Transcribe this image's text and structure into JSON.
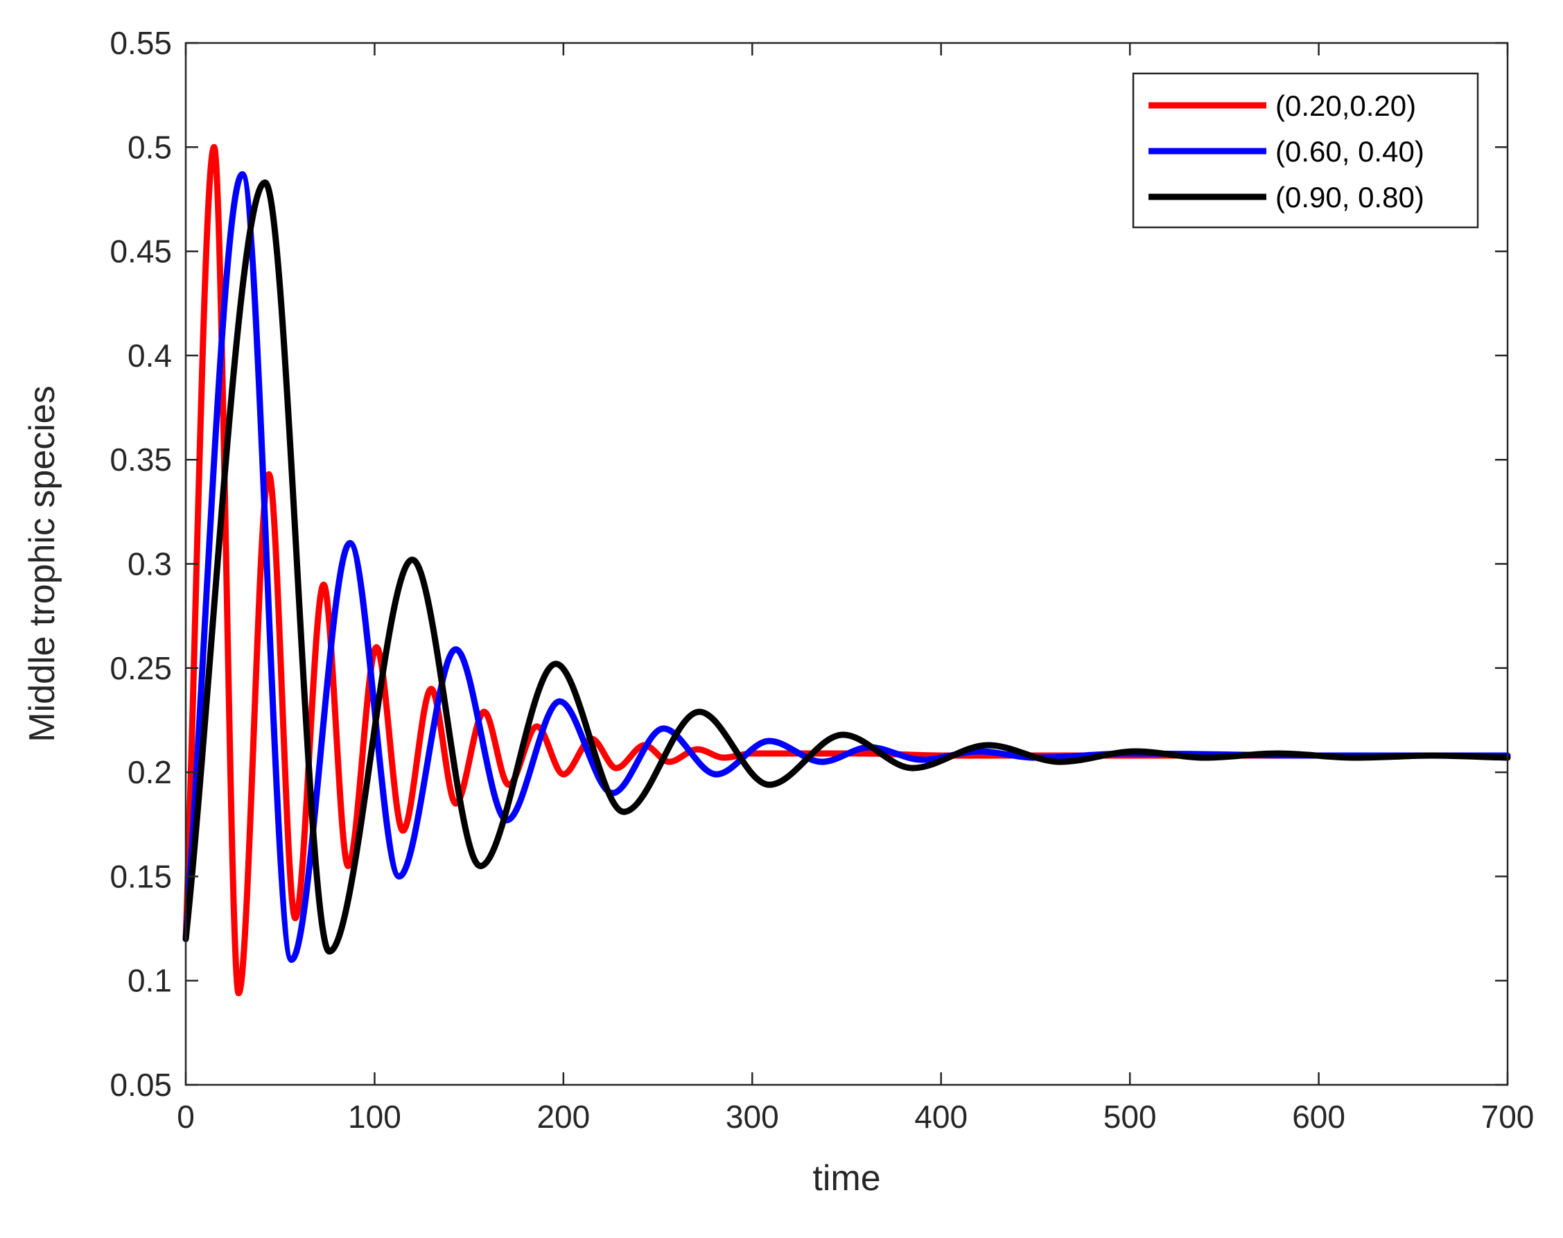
{
  "chart_data": {
    "type": "line",
    "title": "",
    "xlabel": "time",
    "ylabel": "Middle trophic species",
    "xlim": [
      0,
      700
    ],
    "ylim": [
      0.05,
      0.55
    ],
    "xticks": [
      0,
      100,
      200,
      300,
      400,
      500,
      600,
      700
    ],
    "xtick_labels": [
      "0",
      "100",
      "200",
      "300",
      "400",
      "500",
      "600",
      "700"
    ],
    "yticks": [
      0.05,
      0.1,
      0.15,
      0.2,
      0.25,
      0.3,
      0.35,
      0.4,
      0.45,
      0.5,
      0.55
    ],
    "ytick_labels": [
      "0.05",
      "0.1",
      "0.15",
      "0.2",
      "0.25",
      "0.3",
      "0.35",
      "0.4",
      "0.45",
      "0.5",
      "0.55"
    ],
    "grid": false,
    "legend_position": "top-right",
    "series": [
      {
        "name": "(0.20,0.20)",
        "color": "#ff0000",
        "x": [
          0,
          15,
          28,
          44,
          58,
          73,
          86,
          101,
          115,
          130,
          143,
          158,
          171,
          186,
          200,
          215,
          228,
          243,
          256,
          271,
          285,
          300,
          330,
          360,
          400,
          500,
          600,
          700
        ],
        "y": [
          0.12,
          0.5,
          0.094,
          0.343,
          0.13,
          0.29,
          0.155,
          0.26,
          0.172,
          0.24,
          0.185,
          0.229,
          0.194,
          0.222,
          0.199,
          0.216,
          0.202,
          0.213,
          0.205,
          0.211,
          0.207,
          0.209,
          0.209,
          0.209,
          0.208,
          0.208,
          0.208,
          0.208
        ]
      },
      {
        "name": "(0.60, 0.40)",
        "color": "#0000ff",
        "x": [
          0,
          30,
          56,
          87,
          113,
          143,
          170,
          198,
          226,
          253,
          281,
          309,
          337,
          362,
          390,
          420,
          450,
          500,
          600,
          700
        ],
        "y": [
          0.12,
          0.487,
          0.11,
          0.31,
          0.15,
          0.259,
          0.177,
          0.234,
          0.19,
          0.221,
          0.199,
          0.215,
          0.205,
          0.212,
          0.206,
          0.21,
          0.207,
          0.209,
          0.208,
          0.208
        ]
      },
      {
        "name": "(0.90, 0.80)",
        "color": "#000000",
        "x": [
          0,
          42,
          76,
          120,
          156,
          196,
          232,
          272,
          309,
          348,
          385,
          425,
          463,
          503,
          540,
          578,
          620,
          660,
          700
        ],
        "y": [
          0.12,
          0.483,
          0.114,
          0.302,
          0.155,
          0.252,
          0.181,
          0.229,
          0.194,
          0.218,
          0.202,
          0.213,
          0.205,
          0.21,
          0.207,
          0.209,
          0.207,
          0.208,
          0.207
        ]
      }
    ]
  }
}
